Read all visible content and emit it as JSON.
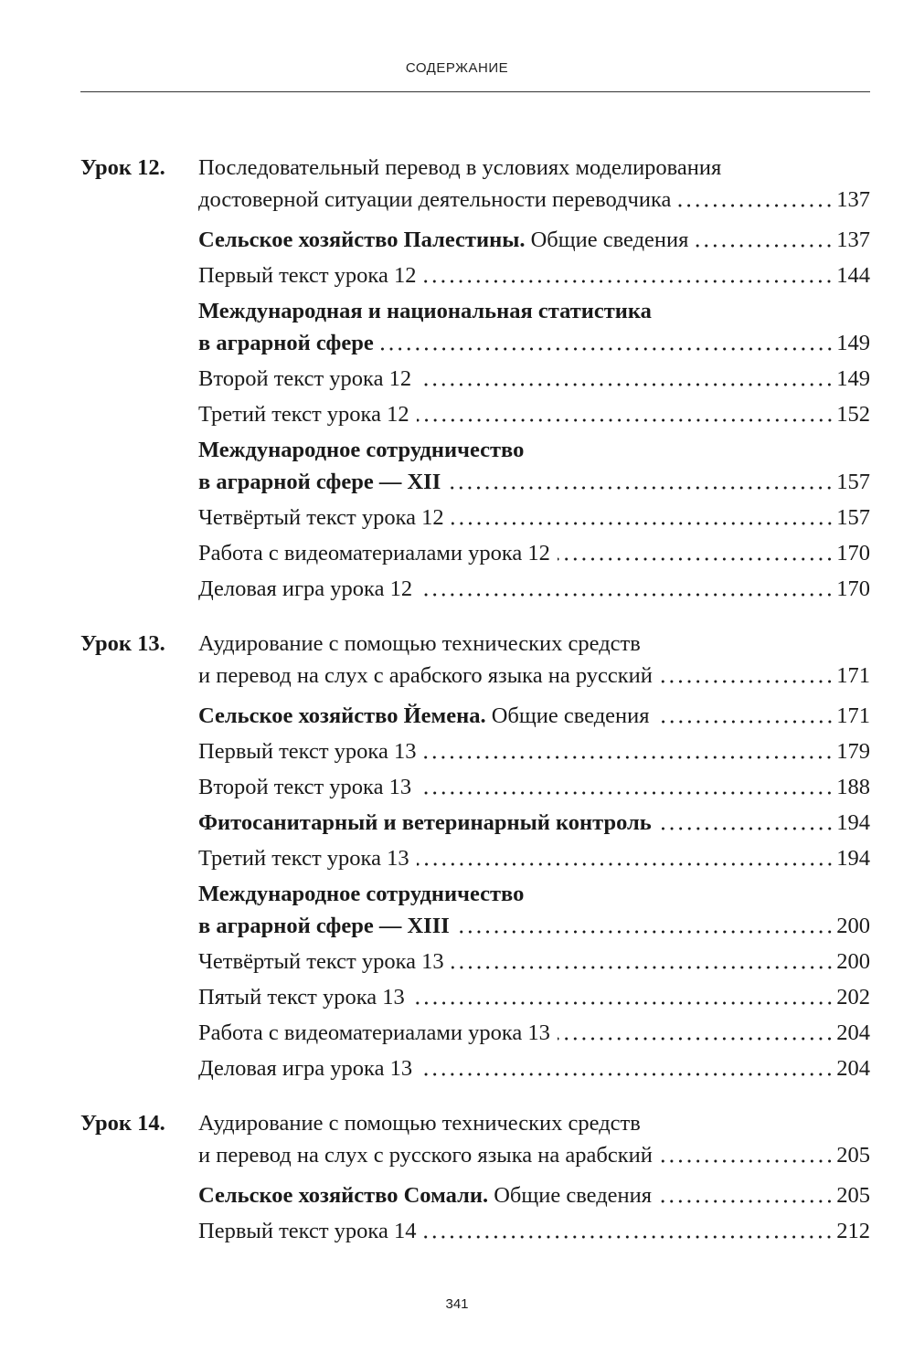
{
  "header": {
    "title": "СОДЕРЖАНИЕ"
  },
  "lessons": [
    {
      "label": "Урок 12.",
      "title": {
        "lines": [
          "Последовательный перевод в условиях моделирования",
          "достоверной ситуации деятельности переводчика"
        ],
        "page": "137"
      },
      "entries": [
        {
          "bold": "Сельское хозяйство Палестины.",
          "normal": " Общие сведения",
          "page": "137"
        },
        {
          "normal": "Первый текст урока 12",
          "page": "144"
        },
        {
          "bold_lines": [
            "Международная и национальная статистика",
            "в аграрной сфере"
          ],
          "page": "149"
        },
        {
          "normal": "Второй текст урока 12",
          "page": "149"
        },
        {
          "normal": "Третий текст урока 12",
          "page": "152"
        },
        {
          "bold_lines": [
            "Международное сотрудничество",
            "в аграрной сфере — XII"
          ],
          "page": "157"
        },
        {
          "normal": "Четвёртый текст урока 12",
          "page": "157"
        },
        {
          "normal": "Работа с видеоматериалами урока 12",
          "page": "170"
        },
        {
          "normal": "Деловая игра урока 12",
          "page": "170"
        }
      ]
    },
    {
      "label": "Урок 13.",
      "title": {
        "lines": [
          "Аудирование с помощью технических средств",
          "и перевод на слух с арабского языка на русский"
        ],
        "page": "171"
      },
      "entries": [
        {
          "bold": "Сельское хозяйство Йемена.",
          "normal": " Общие сведения",
          "page": "171"
        },
        {
          "normal": "Первый текст урока 13",
          "page": "179"
        },
        {
          "normal": "Второй текст урока 13",
          "page": "188"
        },
        {
          "bold": "Фитосанитарный и ветеринарный контроль",
          "page": "194"
        },
        {
          "normal": "Третий текст урока 13",
          "page": "194"
        },
        {
          "bold_lines": [
            "Международное сотрудничество",
            "в аграрной сфере — XIII"
          ],
          "page": "200"
        },
        {
          "normal": "Четвёртый текст урока 13",
          "page": "200"
        },
        {
          "normal": "Пятый текст урока 13",
          "page": "202"
        },
        {
          "normal": "Работа с видеоматериалами урока 13",
          "page": "204"
        },
        {
          "normal": "Деловая игра урока 13",
          "page": "204"
        }
      ]
    },
    {
      "label": "Урок 14.",
      "title": {
        "lines": [
          "Аудирование с помощью технических средств",
          "и перевод на слух с русского языка на арабский"
        ],
        "page": "205"
      },
      "entries": [
        {
          "bold": "Сельское хозяйство Сомали.",
          "normal": " Общие сведения",
          "page": "205"
        },
        {
          "normal": "Первый текст урока 14",
          "page": "212"
        }
      ]
    }
  ],
  "footer": {
    "page_number": "341"
  }
}
